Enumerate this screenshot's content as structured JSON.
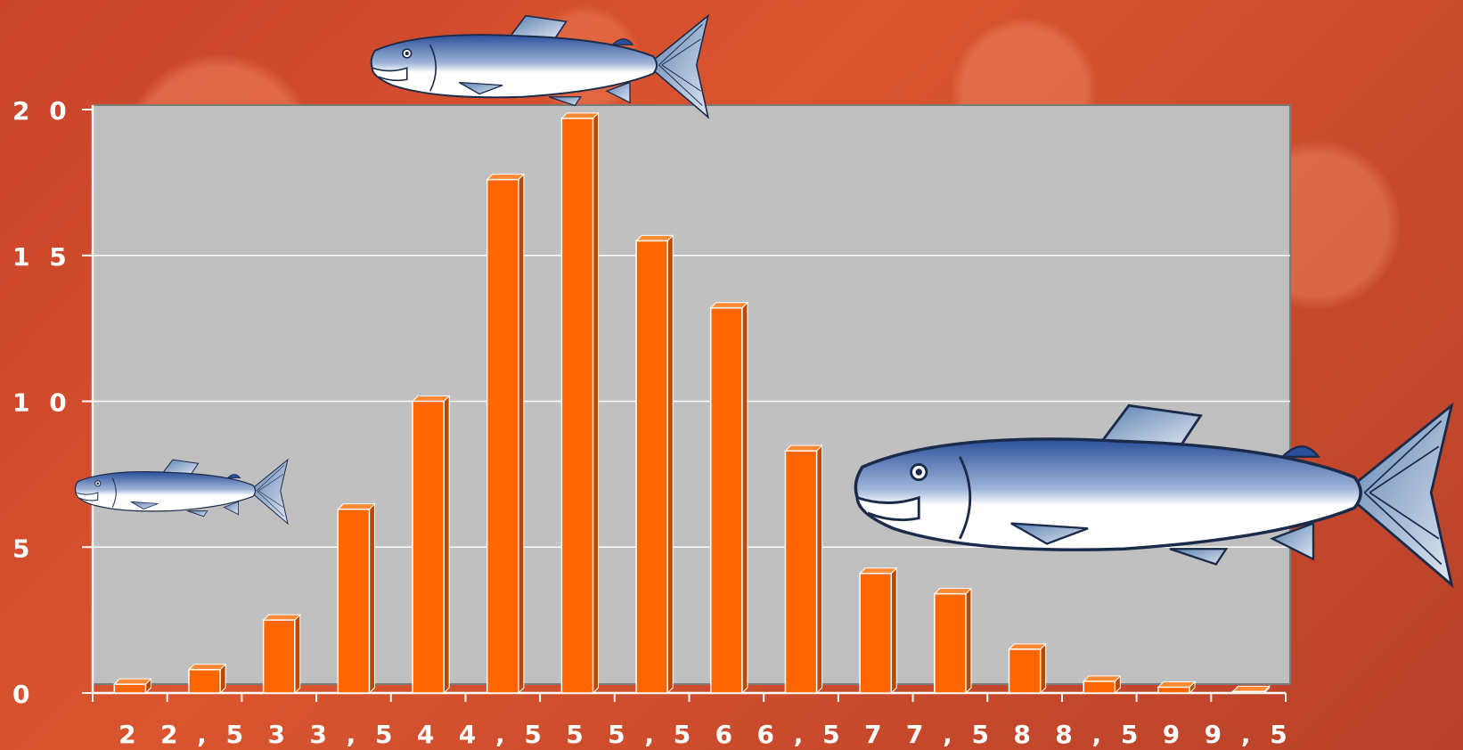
{
  "chart_data": {
    "type": "bar",
    "categories": [
      "2",
      "2,5",
      "3",
      "3,5",
      "4",
      "4,5",
      "5",
      "5,5",
      "6",
      "6,5",
      "7",
      "7,5",
      "8",
      "8,5",
      "9",
      "9,5"
    ],
    "values": [
      0.3,
      0.8,
      2.5,
      6.3,
      10.0,
      17.6,
      19.7,
      15.5,
      13.2,
      8.3,
      4.1,
      3.4,
      1.5,
      0.4,
      0.2,
      0.05
    ],
    "ylim": [
      0,
      20
    ],
    "yticks": [
      "0",
      "5",
      "1 0",
      "1 5",
      "2 0"
    ],
    "xtick_labels": [
      "2",
      "2 , 5",
      "3",
      "3 , 5",
      "4",
      "4 , 5",
      "5",
      "5 , 5",
      "6",
      "6 , 5",
      "7",
      "7 , 5",
      "8",
      "8 , 5",
      "9",
      "9 , 5"
    ],
    "title": "",
    "xlabel": "",
    "ylabel": "",
    "grid": true,
    "legend": "none",
    "colors": {
      "bar": "#ff6600",
      "bar_side": "#b84a00",
      "plot_bg": "#c0c0c0",
      "grid": "#ffffff",
      "page_bg": "#cc4a2c",
      "fish_back": "#2a4f9a",
      "fish_belly": "#ffffff"
    }
  },
  "decorations": {
    "fish_icons": [
      "salmon-icon",
      "salmon-icon",
      "salmon-icon"
    ]
  }
}
